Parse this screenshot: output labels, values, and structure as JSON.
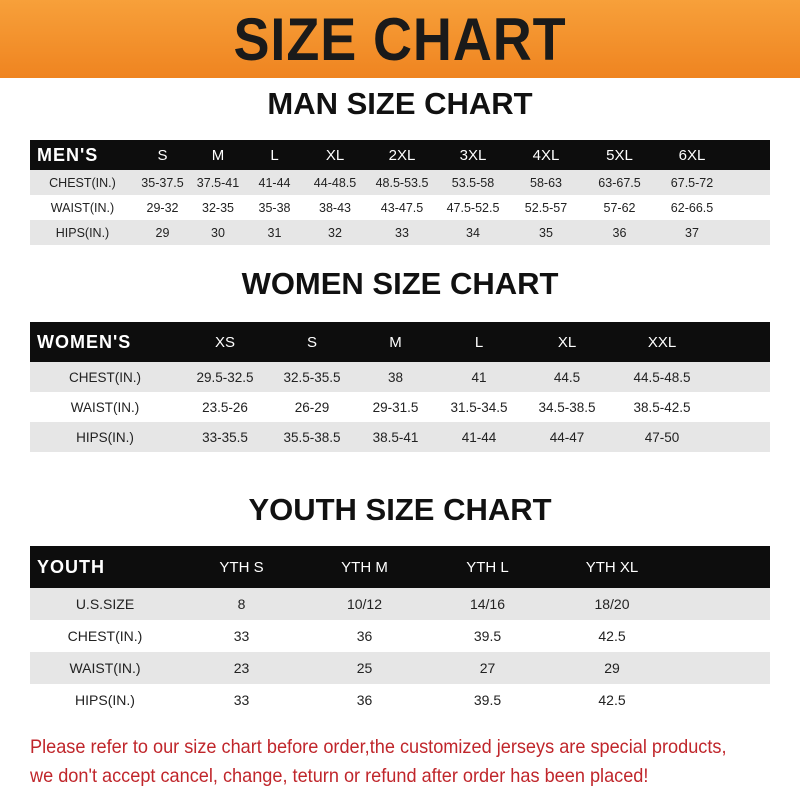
{
  "banner_title": "SIZE CHART",
  "men": {
    "title": "MAN SIZE CHART",
    "header": [
      "MEN'S",
      "S",
      "M",
      "L",
      "XL",
      "2XL",
      "3XL",
      "4XL",
      "5XL",
      "6XL"
    ],
    "rows": [
      [
        "CHEST(IN.)",
        "35-37.5",
        "37.5-41",
        "41-44",
        "44-48.5",
        "48.5-53.5",
        "53.5-58",
        "58-63",
        "63-67.5",
        "67.5-72"
      ],
      [
        "WAIST(IN.)",
        "29-32",
        "32-35",
        "35-38",
        "38-43",
        "43-47.5",
        "47.5-52.5",
        "52.5-57",
        "57-62",
        "62-66.5"
      ],
      [
        "HIPS(IN.)",
        "29",
        "30",
        "31",
        "32",
        "33",
        "34",
        "35",
        "36",
        "37"
      ]
    ]
  },
  "women": {
    "title": "WOMEN SIZE CHART",
    "header": [
      "WOMEN'S",
      "XS",
      "S",
      "M",
      "L",
      "XL",
      "XXL"
    ],
    "rows": [
      [
        "CHEST(IN.)",
        "29.5-32.5",
        "32.5-35.5",
        "38",
        "41",
        "44.5",
        "44.5-48.5"
      ],
      [
        "WAIST(IN.)",
        "23.5-26",
        "26-29",
        "29-31.5",
        "31.5-34.5",
        "34.5-38.5",
        "38.5-42.5"
      ],
      [
        "HIPS(IN.)",
        "33-35.5",
        "35.5-38.5",
        "38.5-41",
        "41-44",
        "44-47",
        "47-50"
      ]
    ]
  },
  "youth": {
    "title": "YOUTH SIZE CHART",
    "header": [
      "YOUTH",
      "YTH S",
      "YTH M",
      "YTH L",
      "YTH XL"
    ],
    "rows": [
      [
        "U.S.SIZE",
        "8",
        "10/12",
        "14/16",
        "18/20"
      ],
      [
        "CHEST(IN.)",
        "33",
        "36",
        "39.5",
        "42.5"
      ],
      [
        "WAIST(IN.)",
        "23",
        "25",
        "27",
        "29"
      ],
      [
        "HIPS(IN.)",
        "33",
        "36",
        "39.5",
        "42.5"
      ]
    ]
  },
  "notice": {
    "line1": "Please refer to our size chart before order,the customized jerseys are special products,",
    "line2": "we don't accept cancel, change, teturn or refund after order has been placed!"
  },
  "colors": {
    "banner": "#ef8420",
    "header_row": "#0d0d0d",
    "stripe": "#e6e6e6",
    "notice": "#c0262b"
  }
}
